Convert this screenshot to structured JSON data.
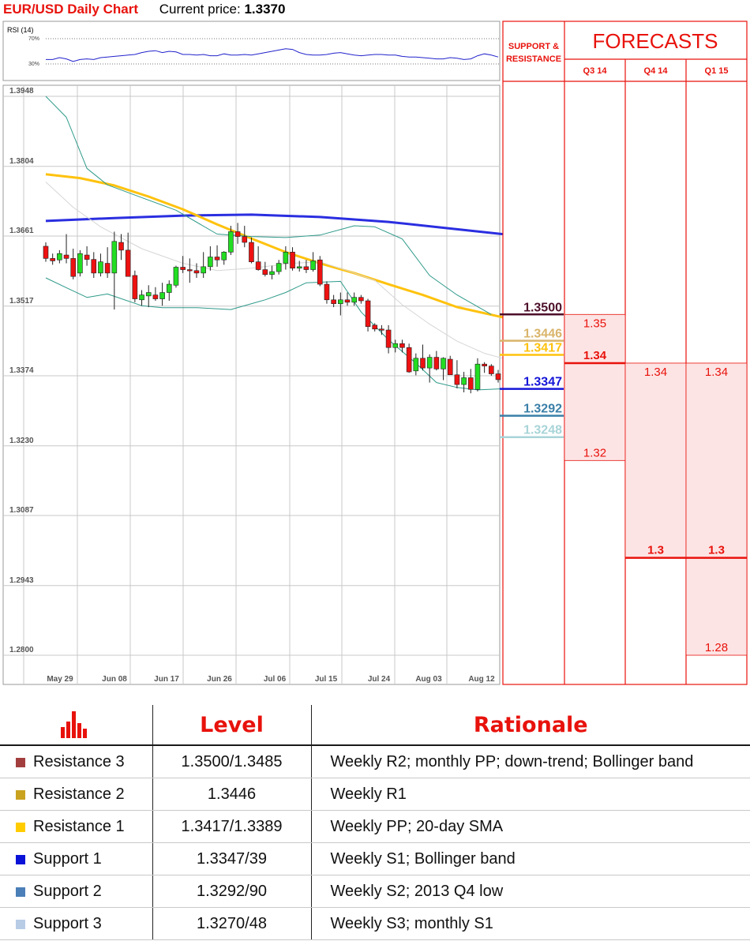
{
  "header": {
    "title": "EUR/USD Daily Chart",
    "price_label": "Current price:",
    "price_value": "1.3370"
  },
  "rsi": {
    "label": "RSI (14)",
    "levels": [
      "70%",
      "30%"
    ],
    "values": [
      37,
      37,
      40,
      38,
      34,
      37,
      38,
      37,
      40,
      41,
      42,
      43,
      44,
      45,
      48,
      50,
      51,
      48,
      50,
      49,
      45,
      45,
      44,
      45,
      43,
      43,
      46,
      44,
      44,
      45,
      44,
      46,
      48,
      50,
      52,
      54,
      53,
      48,
      45,
      44,
      44,
      45,
      47,
      48,
      46,
      44,
      43,
      44,
      45,
      45,
      44,
      44,
      42,
      41,
      41,
      40,
      39,
      38,
      38,
      40,
      39,
      37,
      38,
      43,
      46,
      44,
      41
    ]
  },
  "chart_data": {
    "type": "candlestick",
    "title": "EUR/USD Daily Chart",
    "yticks": [
      "1.3948",
      "1.3804",
      "1.3661",
      "1.3517",
      "1.3374",
      "1.3230",
      "1.3087",
      "1.2943",
      "1.2800"
    ],
    "ylim": [
      1.28,
      1.3948
    ],
    "xticks": [
      "May 29",
      "Jun 08",
      "Jun 17",
      "Jun 26",
      "Jul 06",
      "Jul 15",
      "Jul 24",
      "Aug 03",
      "Aug 12"
    ],
    "grid": true,
    "candles": [
      [
        1.364,
        1.3648,
        1.3608,
        1.3615
      ],
      [
        1.3615,
        1.3625,
        1.3602,
        1.361
      ],
      [
        1.3612,
        1.3632,
        1.3605,
        1.3625
      ],
      [
        1.3622,
        1.3665,
        1.3605,
        1.3615
      ],
      [
        1.3615,
        1.3635,
        1.3572,
        1.3578
      ],
      [
        1.3585,
        1.3632,
        1.3578,
        1.3625
      ],
      [
        1.3622,
        1.364,
        1.36,
        1.3613
      ],
      [
        1.3613,
        1.3628,
        1.3575,
        1.3585
      ],
      [
        1.3585,
        1.3625,
        1.3578,
        1.3608
      ],
      [
        1.3605,
        1.3638,
        1.3575,
        1.3585
      ],
      [
        1.3585,
        1.367,
        1.351,
        1.365
      ],
      [
        1.3648,
        1.3665,
        1.3612,
        1.3632
      ],
      [
        1.3632,
        1.3668,
        1.3578,
        1.3578
      ],
      [
        1.358,
        1.359,
        1.3525,
        1.3532
      ],
      [
        1.353,
        1.355,
        1.3518,
        1.354
      ],
      [
        1.3538,
        1.356,
        1.3515,
        1.3545
      ],
      [
        1.354,
        1.3556,
        1.3528,
        1.3532
      ],
      [
        1.3532,
        1.3565,
        1.3518,
        1.3545
      ],
      [
        1.3545,
        1.357,
        1.3528,
        1.3562
      ],
      [
        1.356,
        1.36,
        1.3555,
        1.3597
      ],
      [
        1.3597,
        1.362,
        1.3585,
        1.3592
      ],
      [
        1.3592,
        1.3615,
        1.3565,
        1.359
      ],
      [
        1.359,
        1.3605,
        1.3575,
        1.3585
      ],
      [
        1.3585,
        1.3628,
        1.3575,
        1.3598
      ],
      [
        1.3598,
        1.364,
        1.359,
        1.3618
      ],
      [
        1.3618,
        1.3642,
        1.3598,
        1.3612
      ],
      [
        1.3612,
        1.363,
        1.3602,
        1.3628
      ],
      [
        1.3628,
        1.3682,
        1.3622,
        1.367
      ],
      [
        1.367,
        1.3688,
        1.3645,
        1.366
      ],
      [
        1.366,
        1.3682,
        1.3638,
        1.3648
      ],
      [
        1.3648,
        1.3658,
        1.3605,
        1.3608
      ],
      [
        1.3608,
        1.364,
        1.359,
        1.3592
      ],
      [
        1.3592,
        1.3608,
        1.3578,
        1.3582
      ],
      [
        1.3582,
        1.36,
        1.3572,
        1.3588
      ],
      [
        1.3588,
        1.3612,
        1.3582,
        1.3605
      ],
      [
        1.3605,
        1.364,
        1.3592,
        1.3628
      ],
      [
        1.3628,
        1.3638,
        1.359,
        1.3595
      ],
      [
        1.3595,
        1.361,
        1.3588,
        1.3598
      ],
      [
        1.3598,
        1.3612,
        1.3585,
        1.3592
      ],
      [
        1.3592,
        1.3628,
        1.3588,
        1.361
      ],
      [
        1.3612,
        1.362,
        1.3558,
        1.3562
      ],
      [
        1.3562,
        1.3568,
        1.3522,
        1.353
      ],
      [
        1.353,
        1.354,
        1.3515,
        1.3522
      ],
      [
        1.3522,
        1.3545,
        1.3498,
        1.353
      ],
      [
        1.353,
        1.3545,
        1.3518,
        1.3525
      ],
      [
        1.3525,
        1.3545,
        1.3518,
        1.3535
      ],
      [
        1.3535,
        1.354,
        1.3522,
        1.3528
      ],
      [
        1.3528,
        1.3532,
        1.3465,
        1.3475
      ],
      [
        1.3478,
        1.3482,
        1.3465,
        1.347
      ],
      [
        1.347,
        1.3478,
        1.3458,
        1.3468
      ],
      [
        1.3468,
        1.3478,
        1.342,
        1.3432
      ],
      [
        1.3432,
        1.3448,
        1.3422,
        1.344
      ],
      [
        1.344,
        1.3448,
        1.3422,
        1.3432
      ],
      [
        1.3432,
        1.344,
        1.338,
        1.3382
      ],
      [
        1.3384,
        1.342,
        1.3375,
        1.341
      ],
      [
        1.341,
        1.3438,
        1.3385,
        1.339
      ],
      [
        1.339,
        1.3418,
        1.336,
        1.3412
      ],
      [
        1.3412,
        1.3425,
        1.3385,
        1.3388
      ],
      [
        1.3388,
        1.3412,
        1.3365,
        1.341
      ],
      [
        1.3408,
        1.3415,
        1.3376,
        1.3376
      ],
      [
        1.3376,
        1.3406,
        1.3348,
        1.3356
      ],
      [
        1.3356,
        1.3382,
        1.334,
        1.337
      ],
      [
        1.337,
        1.3388,
        1.3338,
        1.3346
      ],
      [
        1.3346,
        1.341,
        1.3342,
        1.3398
      ],
      [
        1.3398,
        1.3402,
        1.338,
        1.3394
      ],
      [
        1.3394,
        1.3398,
        1.3374,
        1.3378
      ],
      [
        1.3378,
        1.3386,
        1.336,
        1.3366
      ]
    ],
    "lines": [
      {
        "name": "SMA blue",
        "color": "#2a2ee0",
        "width": 3,
        "pts": [
          [
            0,
            1.3692
          ],
          [
            10,
            1.3698
          ],
          [
            20,
            1.3703
          ],
          [
            30,
            1.3705
          ],
          [
            40,
            1.37
          ],
          [
            50,
            1.369
          ],
          [
            60,
            1.3675
          ],
          [
            68,
            1.3663
          ]
        ]
      },
      {
        "name": "SMA yellow",
        "color": "#ffc20e",
        "width": 3,
        "pts": [
          [
            0,
            1.3788
          ],
          [
            5,
            1.378
          ],
          [
            10,
            1.3765
          ],
          [
            15,
            1.3742
          ],
          [
            20,
            1.3716
          ],
          [
            25,
            1.3685
          ],
          [
            30,
            1.3656
          ],
          [
            35,
            1.3628
          ],
          [
            40,
            1.3605
          ],
          [
            45,
            1.3585
          ],
          [
            50,
            1.3562
          ],
          [
            55,
            1.354
          ],
          [
            60,
            1.3515
          ],
          [
            68,
            1.349
          ]
        ]
      },
      {
        "name": "Bollinger upper",
        "color": "#2e9a8a",
        "width": 1,
        "pts": [
          [
            0,
            1.3948
          ],
          [
            3,
            1.3905
          ],
          [
            6,
            1.38
          ],
          [
            9,
            1.3766
          ],
          [
            14,
            1.374
          ],
          [
            19,
            1.3714
          ],
          [
            25,
            1.3665
          ],
          [
            30,
            1.366
          ],
          [
            35,
            1.3658
          ],
          [
            40,
            1.3663
          ],
          [
            45,
            1.3682
          ],
          [
            48,
            1.368
          ],
          [
            52,
            1.3655
          ],
          [
            56,
            1.358
          ],
          [
            60,
            1.354
          ],
          [
            65,
            1.35
          ]
        ]
      },
      {
        "name": "Bollinger lower",
        "color": "#2e9a8a",
        "width": 1,
        "pts": [
          [
            0,
            1.3575
          ],
          [
            3,
            1.3555
          ],
          [
            6,
            1.3535
          ],
          [
            9,
            1.3542
          ],
          [
            14,
            1.3518
          ],
          [
            17,
            1.3514
          ],
          [
            22,
            1.3514
          ],
          [
            27,
            1.351
          ],
          [
            32,
            1.353
          ],
          [
            35,
            1.3545
          ],
          [
            38,
            1.3565
          ],
          [
            43,
            1.3568
          ],
          [
            46,
            1.3505
          ],
          [
            50,
            1.3448
          ],
          [
            54,
            1.34
          ],
          [
            57,
            1.336
          ],
          [
            60,
            1.335
          ],
          [
            63,
            1.3345
          ],
          [
            68,
            1.3348
          ]
        ]
      },
      {
        "name": "Middle band",
        "color": "#d6d6d6",
        "width": 1,
        "pts": [
          [
            0,
            1.3772
          ],
          [
            4,
            1.372
          ],
          [
            8,
            1.368
          ],
          [
            14,
            1.3635
          ],
          [
            20,
            1.3605
          ],
          [
            25,
            1.359
          ],
          [
            30,
            1.3595
          ],
          [
            36,
            1.3605
          ],
          [
            40,
            1.3608
          ],
          [
            44,
            1.359
          ],
          [
            48,
            1.357
          ],
          [
            52,
            1.352
          ],
          [
            56,
            1.348
          ],
          [
            60,
            1.3445
          ],
          [
            64,
            1.342
          ],
          [
            68,
            1.3405
          ]
        ]
      }
    ]
  },
  "support_resistance": {
    "title_line1": "SUPPORT &",
    "title_line2": "RESISTANCE",
    "levels": [
      {
        "label": "1.3500",
        "value": 1.35,
        "color": "#4d0f2a"
      },
      {
        "label": "1.3446",
        "value": 1.3446,
        "color": "#d9b46a"
      },
      {
        "label": "1.3417",
        "value": 1.3417,
        "color": "#ffc20e"
      },
      {
        "label": "1.3347",
        "value": 1.3347,
        "color": "#1414d8"
      },
      {
        "label": "1.3292",
        "value": 1.3292,
        "color": "#3a7fa8"
      },
      {
        "label": "1.3248",
        "value": 1.3248,
        "color": "#a8d4d8"
      }
    ]
  },
  "forecasts": {
    "title": "FORECASTS",
    "columns": [
      {
        "label": "Q3 14",
        "range": [
          1.35,
          1.32
        ],
        "high": "1.35",
        "mid": "1.34",
        "low": "1.32",
        "mid_value": 1.34
      },
      {
        "label": "Q4 14",
        "range": [
          1.34,
          1.3
        ],
        "high": "1.34",
        "mid": "1.3",
        "low": "",
        "mid_value": 1.3
      },
      {
        "label": "Q1 15",
        "range": [
          1.34,
          1.28
        ],
        "high": "1.34",
        "mid": "1.3",
        "low": "1.28",
        "mid_value": 1.3
      }
    ]
  },
  "table": {
    "headers": [
      "",
      "Level",
      "Rationale"
    ],
    "rows": [
      {
        "name": "Resistance 3",
        "level": "1.3500/1.3485",
        "rationale": "Weekly R2; monthly PP; down-trend; Bollinger band",
        "color": "#a33e3e"
      },
      {
        "name": "Resistance 2",
        "level": "1.3446",
        "rationale": "Weekly R1",
        "color": "#c9a21f"
      },
      {
        "name": "Resistance 1",
        "level": "1.3417/1.3389",
        "rationale": "Weekly PP; 20-day SMA",
        "color": "#ffcc00"
      },
      {
        "name": "Support 1",
        "level": "1.3347/39",
        "rationale": "Weekly S1; Bollinger band",
        "color": "#0a12d8"
      },
      {
        "name": "Support 2",
        "level": "1.3292/90",
        "rationale": "Weekly S2; 2013 Q4 low",
        "color": "#4a7fb8"
      },
      {
        "name": "Support 3",
        "level": "1.3270/48",
        "rationale": "Weekly S3; monthly S1",
        "color": "#b8cce6"
      }
    ]
  }
}
